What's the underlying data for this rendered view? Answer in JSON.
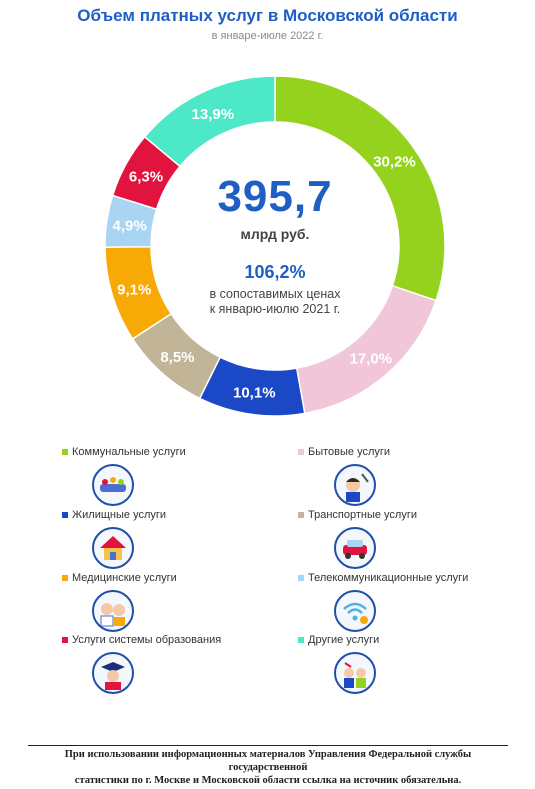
{
  "header": {
    "title": "Объем платных услуг в Московской области",
    "subtitle": "в январе-июле 2022 г."
  },
  "center": {
    "value": "395,7",
    "unit": "млрд руб.",
    "index": "106,2%",
    "note_line1": "в сопоставимых ценах",
    "note_line2": "к январю-июлю 2021 г."
  },
  "chart_data": {
    "type": "pie",
    "title": "Объем платных услуг в Московской области",
    "subtitle": "в январе-июле 2022 г.",
    "donut": true,
    "slices": [
      {
        "name": "Коммунальные услуги",
        "value": 30.2,
        "label": "30,2%",
        "color": "#94d21e"
      },
      {
        "name": "Бытовые услуги",
        "value": 17.0,
        "label": "17,0%",
        "color": "#f0c6d8"
      },
      {
        "name": "Жилищные услуги",
        "value": 10.1,
        "label": "10,1%",
        "color": "#1a48c6"
      },
      {
        "name": "Транспортные услуги",
        "value": 8.5,
        "label": "8,5%",
        "color": "#c2b497"
      },
      {
        "name": "Медицинские услуги",
        "value": 9.1,
        "label": "9,1%",
        "color": "#f7a906"
      },
      {
        "name": "Телекоммуникационные услуги",
        "value": 4.9,
        "label": "4,9%",
        "color": "#a9d4f2"
      },
      {
        "name": "Услуги системы образования",
        "value": 6.3,
        "label": "6,3%",
        "color": "#e3133f"
      },
      {
        "name": "Другие услуги",
        "value": 13.9,
        "label": "13,9%",
        "color": "#4de8c8"
      }
    ]
  },
  "legend": [
    {
      "label": "Коммунальные услуги",
      "color": "#94d21e",
      "icon": "utilities-icon"
    },
    {
      "label": "Бытовые услуги",
      "color": "#f0c6d8",
      "icon": "barber-icon"
    },
    {
      "label": "Жилищные услуги",
      "color": "#1a48c6",
      "icon": "house-icon"
    },
    {
      "label": "Транспортные услуги",
      "color": "#c2b497",
      "icon": "car-icon"
    },
    {
      "label": "Медицинские услуги",
      "color": "#f7a906",
      "icon": "doctor-icon"
    },
    {
      "label": "Телекоммуникационные услуги",
      "color": "#a9d4f2",
      "icon": "wifi-icon"
    },
    {
      "label": "Услуги системы образования",
      "color": "#e3133f",
      "icon": "graduate-icon"
    },
    {
      "label": "Другие услуги",
      "color": "#4de8c8",
      "icon": "services-icon"
    }
  ],
  "footer": {
    "line1": "При использовании информационных материалов Управления Федеральной службы государственной",
    "line2": "статистики по г. Москве и Московской области ссылка на источник обязательна."
  }
}
